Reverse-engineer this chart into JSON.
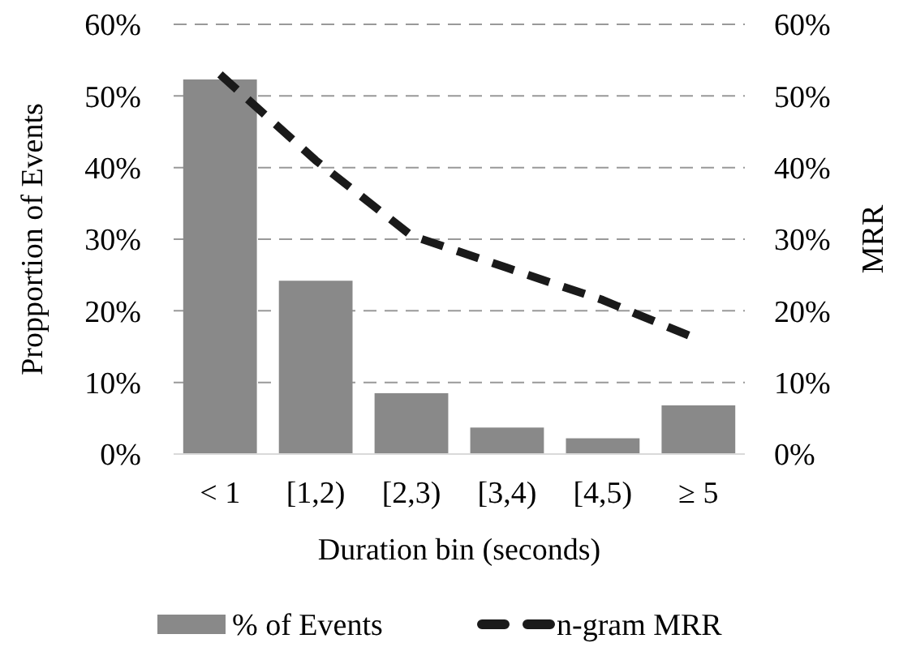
{
  "chart_data": {
    "type": "bar",
    "xlabel": "Duration bin (seconds)",
    "ylabel": "Propportion of Events",
    "y2label": "MRR",
    "categories": [
      "< 1",
      "[1,2)",
      "[2,3)",
      "[3,4)",
      "[4,5)",
      "≥ 5"
    ],
    "series": [
      {
        "name": "% of Events",
        "color": "#898989",
        "values": [
          52.3,
          24.2,
          8.5,
          3.7,
          2.2,
          6.8
        ]
      },
      {
        "name": "n-gram MRR",
        "type": "line",
        "axis": "y2",
        "color": "#1a1a1a",
        "line_style": "dashed",
        "values": [
          53,
          41,
          30.5,
          26,
          21.5,
          16
        ]
      }
    ],
    "ylim": [
      0,
      60
    ],
    "yticks": [
      {
        "value": 0,
        "label": "0%"
      },
      {
        "value": 10,
        "label": "10%"
      },
      {
        "value": 20,
        "label": "20%"
      },
      {
        "value": 30,
        "label": "30%"
      },
      {
        "value": 40,
        "label": "40%"
      },
      {
        "value": 50,
        "label": "50%"
      },
      {
        "value": 60,
        "label": "60%"
      }
    ],
    "y2lim": [
      0,
      60
    ],
    "y2ticks": [
      {
        "value": 0,
        "label": "0%"
      },
      {
        "value": 10,
        "label": "10%"
      },
      {
        "value": 20,
        "label": "20%"
      },
      {
        "value": 30,
        "label": "30%"
      },
      {
        "value": 40,
        "label": "40%"
      },
      {
        "value": 50,
        "label": "50%"
      },
      {
        "value": 60,
        "label": "60%"
      }
    ],
    "grid": "y",
    "legend": "bottom"
  }
}
